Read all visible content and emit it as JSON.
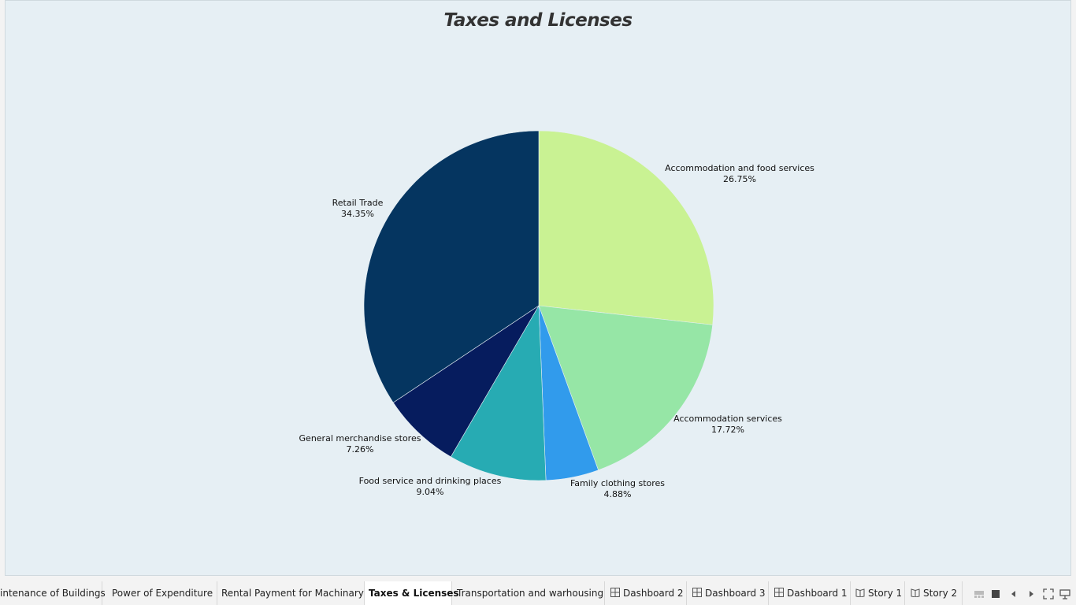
{
  "chart_data": {
    "type": "pie",
    "title": "Taxes and Licenses",
    "slices": [
      {
        "label": "Accommodation and food services",
        "percent": 26.75,
        "value_label": "26.75%",
        "color": "#c9f293"
      },
      {
        "label": "Accommodation services",
        "percent": 17.72,
        "value_label": "17.72%",
        "color": "#96e6a6"
      },
      {
        "label": "Family clothing stores",
        "percent": 4.88,
        "value_label": "4.88%",
        "color": "#319bec"
      },
      {
        "label": "Food service and drinking places",
        "percent": 9.04,
        "value_label": "9.04%",
        "color": "#27abb3"
      },
      {
        "label": "General merchandise stores",
        "percent": 7.26,
        "value_label": "7.26%",
        "color": "#061c5e"
      },
      {
        "label": "Retail Trade",
        "percent": 34.35,
        "value_label": "34.35%",
        "color": "#053560"
      }
    ],
    "start_angle": "12 o'clock",
    "direction": "clockwise",
    "legend": "none"
  },
  "tabs": [
    {
      "label": "intenance of Buildings",
      "icon": "",
      "active": false
    },
    {
      "label": "Power  of Expenditure",
      "icon": "",
      "active": false
    },
    {
      "label": "Rental Payment for Machinary",
      "icon": "",
      "active": false
    },
    {
      "label": "Taxes & Licenses",
      "icon": "",
      "active": true
    },
    {
      "label": "Transportation and warhousing",
      "icon": "",
      "active": false
    },
    {
      "label": "Dashboard 2",
      "icon": "dashboard-icon",
      "active": false
    },
    {
      "label": "Dashboard 3",
      "icon": "dashboard-icon",
      "active": false
    },
    {
      "label": "Dashboard 1",
      "icon": "dashboard-icon",
      "active": false
    },
    {
      "label": "Story 1",
      "icon": "story-icon",
      "active": false
    },
    {
      "label": "Story 2",
      "icon": "story-icon",
      "active": false
    }
  ],
  "controls": [
    {
      "name": "show-filmstrip-icon"
    },
    {
      "name": "show-tabs-icon"
    },
    {
      "name": "previous-sheet-icon"
    },
    {
      "name": "next-sheet-icon"
    },
    {
      "name": "fullscreen-icon"
    },
    {
      "name": "presentation-mode-icon"
    }
  ]
}
